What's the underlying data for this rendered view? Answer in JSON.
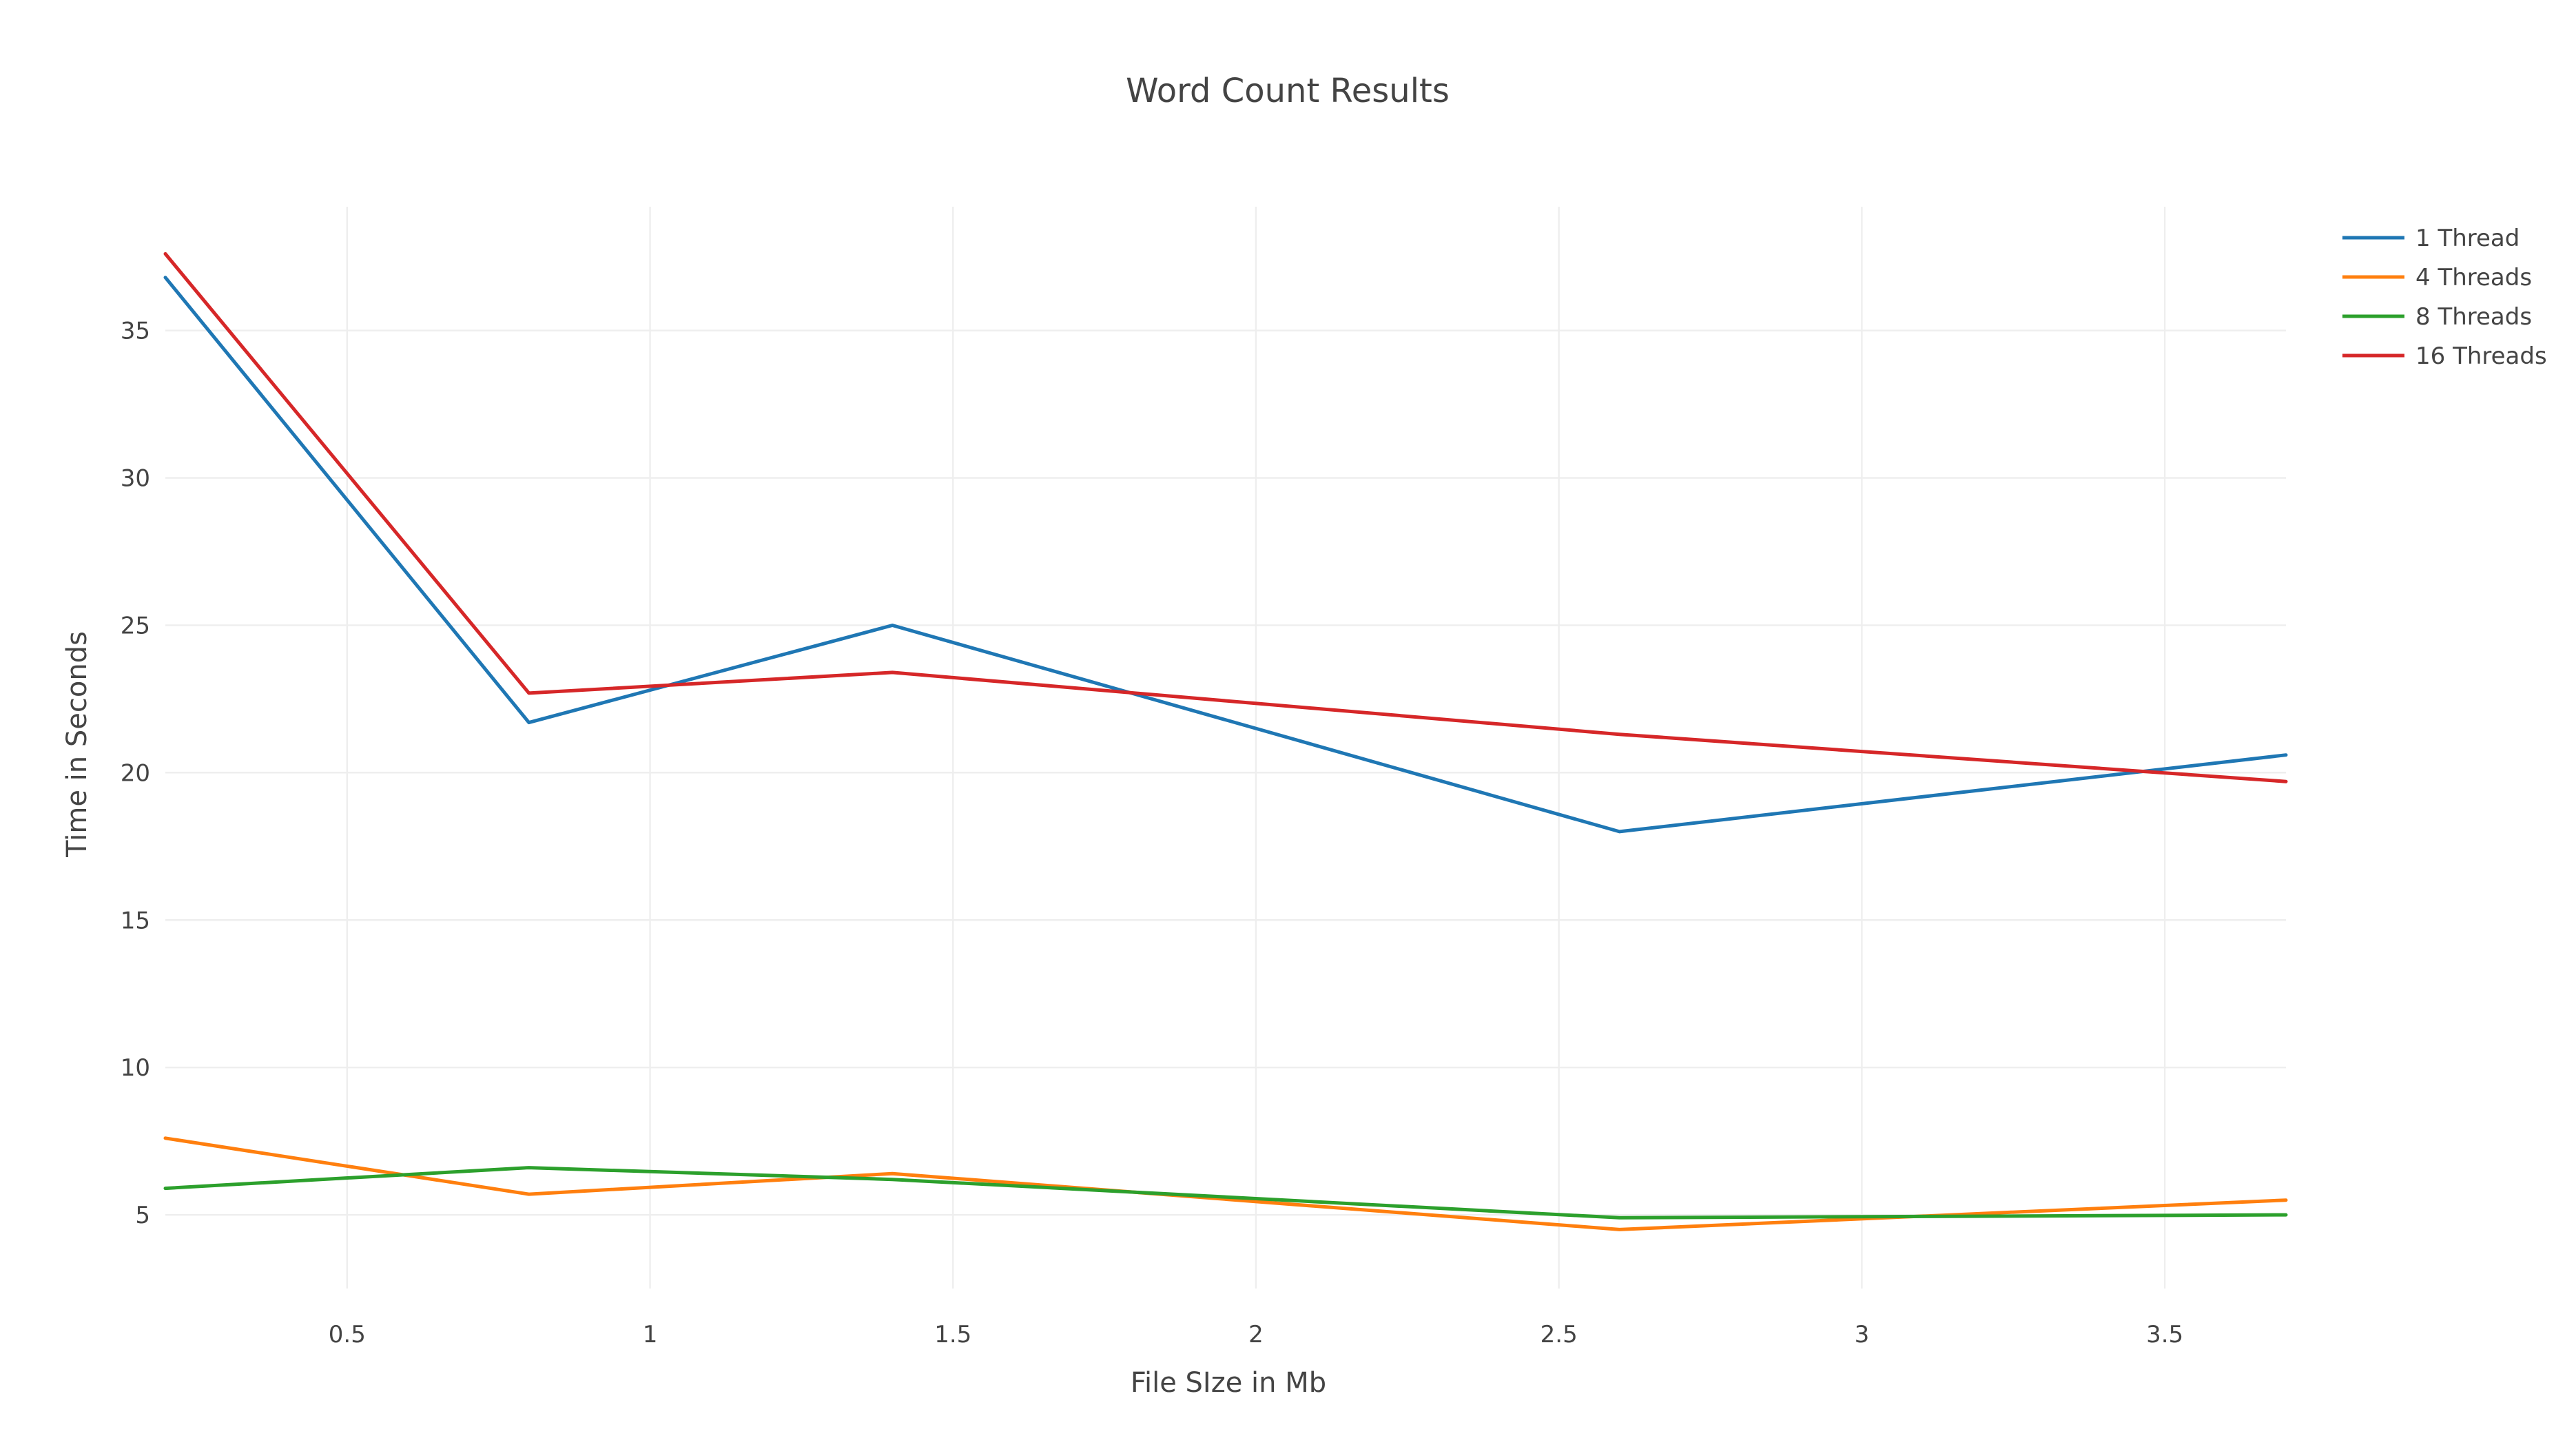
{
  "chart_data": {
    "type": "line",
    "title": "Word Count Results",
    "xlabel": "File SIze in Mb",
    "ylabel": "Time in Seconds",
    "xlim": [
      0.2,
      3.7
    ],
    "ylim": [
      2.5,
      39.2
    ],
    "x_ticks": [
      0.5,
      1,
      1.5,
      2,
      2.5,
      3,
      3.5
    ],
    "y_ticks": [
      5,
      10,
      15,
      20,
      25,
      30,
      35
    ],
    "x_tick_labels": [
      "0.5",
      "1",
      "1.5",
      "2",
      "2.5",
      "3",
      "3.5"
    ],
    "y_tick_labels": [
      "5",
      "10",
      "15",
      "20",
      "25",
      "30",
      "35"
    ],
    "grid": true,
    "legend_position": "top-right",
    "x": [
      0.2,
      0.8,
      1.4,
      2.6,
      3.7
    ],
    "series": [
      {
        "name": "1 Thread",
        "color": "#1f77b4",
        "values": [
          36.8,
          21.7,
          25.0,
          18.0,
          20.6
        ]
      },
      {
        "name": "4 Threads",
        "color": "#ff7f0e",
        "values": [
          7.6,
          5.7,
          6.4,
          4.5,
          5.5
        ]
      },
      {
        "name": "8 Threads",
        "color": "#2ca02c",
        "values": [
          5.9,
          6.6,
          6.2,
          4.9,
          5.0
        ]
      },
      {
        "name": "16 Threads",
        "color": "#d62728",
        "values": [
          37.6,
          22.7,
          23.4,
          21.3,
          19.7
        ]
      }
    ]
  }
}
